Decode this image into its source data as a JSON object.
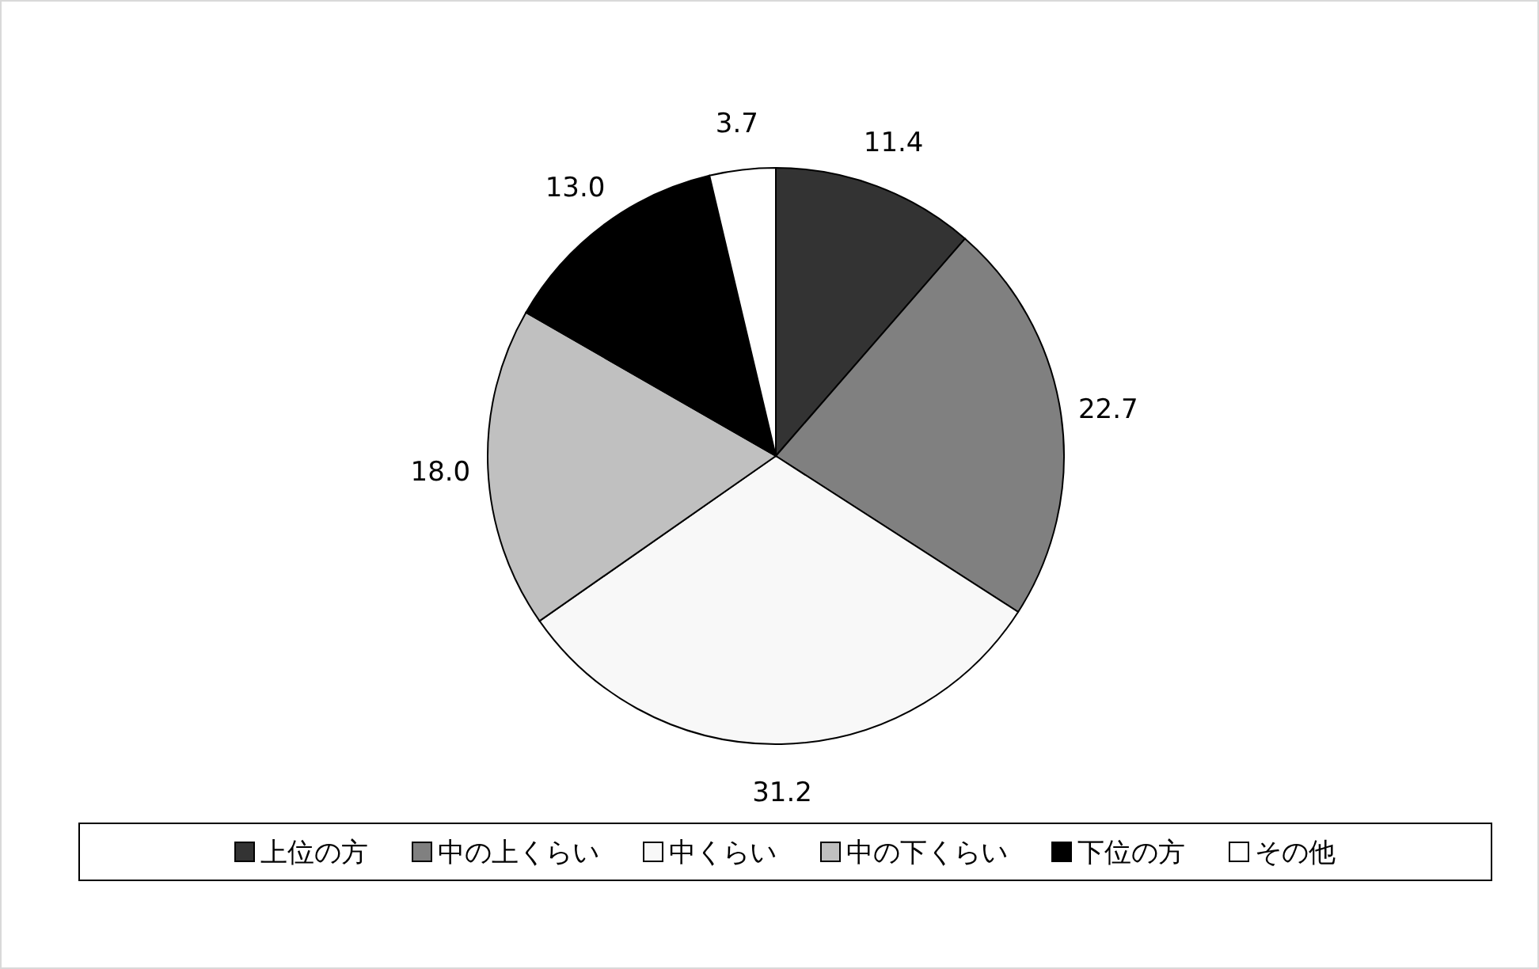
{
  "chart_data": {
    "type": "pie",
    "categories": [
      "上位の方",
      "中の上くらい",
      "中くらい",
      "中の下くらい",
      "下位の方",
      "その他"
    ],
    "values": [
      11.4,
      22.7,
      31.2,
      18.0,
      13.0,
      3.7
    ],
    "colors": [
      "#333333",
      "#808080",
      "#f8f8f8",
      "#c0c0c0",
      "#000000",
      "#ffffff"
    ],
    "value_labels": [
      "11.4",
      "22.7",
      "31.2",
      "18.0",
      "13.0",
      "3.7"
    ],
    "legend": "bottom"
  }
}
